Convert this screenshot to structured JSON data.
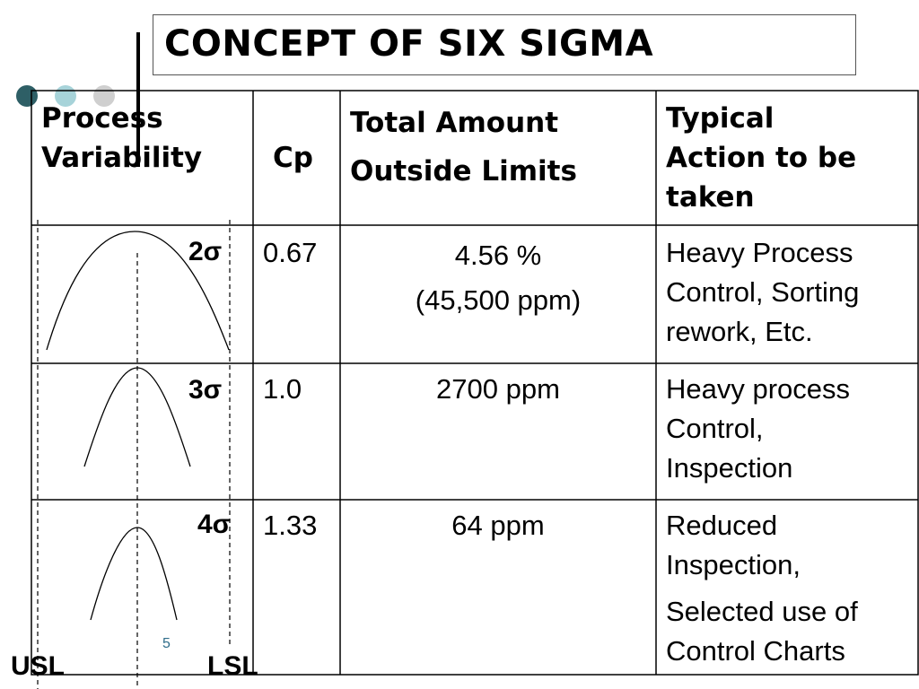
{
  "slide": {
    "title": "CONCEPT OF SIX SIGMA",
    "page_number": "5",
    "accent_colors": [
      "#2e5f66",
      "#a7d3d9",
      "#cfcfcf"
    ]
  },
  "table": {
    "headers": {
      "variability_line1": "Process",
      "variability_line2": "Variability",
      "cp": "Cp",
      "total_line1": "Total Amount",
      "total_line2": "Outside Limits",
      "action_line1": "Typical",
      "action_line2": "Action to be",
      "action_line3": "taken"
    },
    "rows": [
      {
        "sigma": "2σ",
        "cp": "0.67",
        "total_line1": "4.56 %",
        "total_line2": "(45,500 ppm)",
        "action_line1": "Heavy Process",
        "action_line2": "Control, Sorting",
        "action_line3": "rework, Etc."
      },
      {
        "sigma": "3σ",
        "cp": "1.0",
        "total_line1": "2700 ppm",
        "action_line1": "Heavy process",
        "action_line2": "Control,",
        "action_line3": "Inspection"
      },
      {
        "sigma": "4σ",
        "cp": "1.33",
        "total_line1": "64 ppm",
        "action_line1": "Reduced",
        "action_line2": "Inspection,",
        "action_line3": "Selected use of",
        "action_line4": "Control Charts"
      }
    ]
  },
  "limits": {
    "usl": "USL",
    "lsl": "LSL"
  }
}
